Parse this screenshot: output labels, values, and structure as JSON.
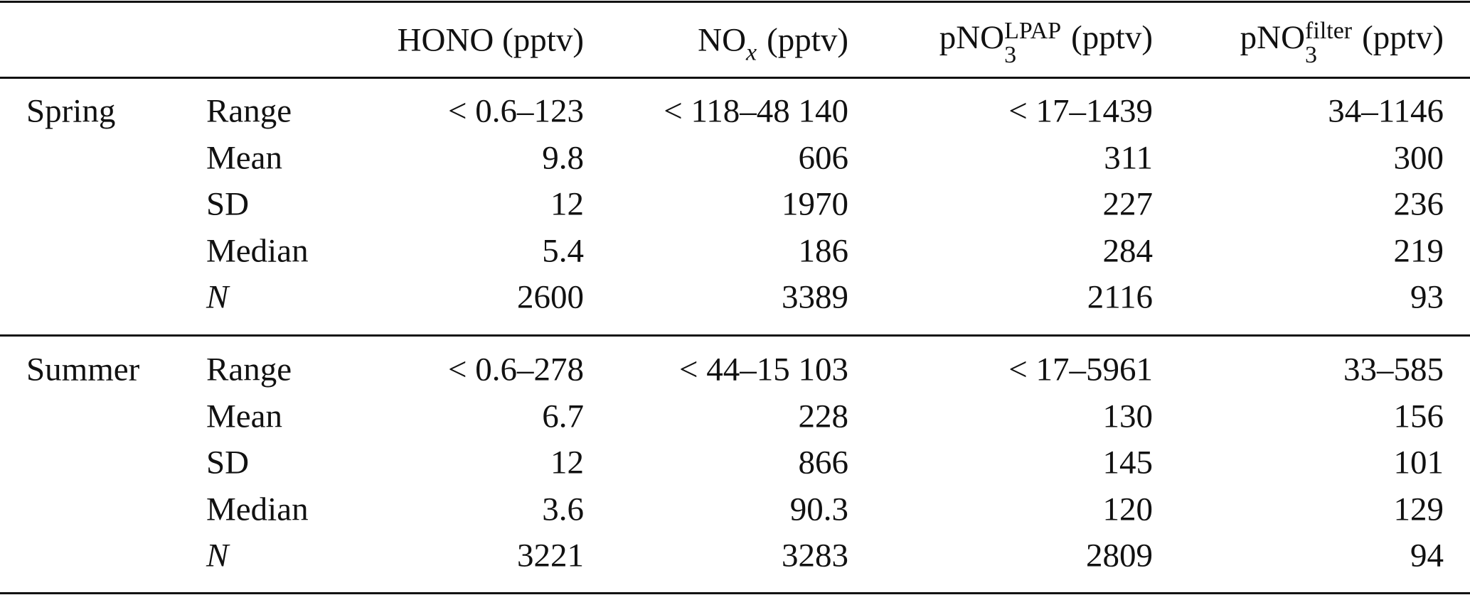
{
  "table": {
    "columns": [
      {
        "base": "HONO",
        "unit": "(pptv)"
      },
      {
        "base": "NO",
        "sub": "x",
        "sub_italic": true,
        "unit": "(pptv)"
      },
      {
        "base": "pNO",
        "sub": "3",
        "sup": "LPAP",
        "unit": "(pptv)"
      },
      {
        "base": "pNO",
        "sub": "3",
        "sup": "filter",
        "unit": "(pptv)"
      }
    ],
    "groups": [
      {
        "name": "Spring",
        "rows": [
          {
            "label": "Range",
            "cells": [
              "< 0.6–123",
              "< 118–48 140",
              "< 17–1439",
              "34–1146"
            ]
          },
          {
            "label": "Mean",
            "cells": [
              "9.8",
              "606",
              "311",
              "300"
            ]
          },
          {
            "label": "SD",
            "cells": [
              "12",
              "1970",
              "227",
              "236"
            ]
          },
          {
            "label": "Median",
            "cells": [
              "5.4",
              "186",
              "284",
              "219"
            ]
          },
          {
            "label": "N",
            "italic": true,
            "cells": [
              "2600",
              "3389",
              "2116",
              "93"
            ]
          }
        ]
      },
      {
        "name": "Summer",
        "rows": [
          {
            "label": "Range",
            "cells": [
              "< 0.6–278",
              "< 44–15 103",
              "< 17–5961",
              "33–585"
            ]
          },
          {
            "label": "Mean",
            "cells": [
              "6.7",
              "228",
              "130",
              "156"
            ]
          },
          {
            "label": "SD",
            "cells": [
              "12",
              "866",
              "145",
              "101"
            ]
          },
          {
            "label": "Median",
            "cells": [
              "3.6",
              "90.3",
              "120",
              "129"
            ]
          },
          {
            "label": "N",
            "italic": true,
            "cells": [
              "3221",
              "3283",
              "2809",
              "94"
            ]
          }
        ]
      }
    ]
  }
}
